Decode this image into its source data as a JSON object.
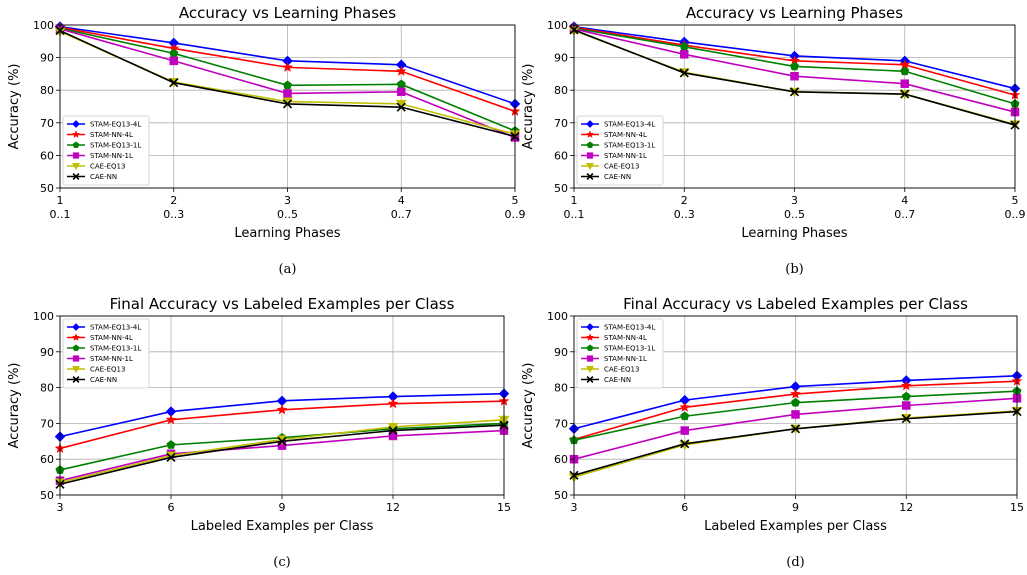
{
  "series_styles": {
    "STAM-EQ13-4L": {
      "color": "#0000ff",
      "marker": "diamond"
    },
    "STAM-NN-4L": {
      "color": "#ff0000",
      "marker": "star"
    },
    "STAM-EQ13-1L": {
      "color": "#008000",
      "marker": "pentagon"
    },
    "STAM-NN-1L": {
      "color": "#c000c0",
      "marker": "square"
    },
    "CAE-EQ13": {
      "color": "#bfbf00",
      "marker": "triangle-down"
    },
    "CAE-NN": {
      "color": "#000000",
      "marker": "x"
    }
  },
  "chart_data": [
    {
      "type": "line",
      "caption": "(a)",
      "title": "Accuracy vs Learning Phases",
      "xlabel": "Learning Phases",
      "ylabel": "Accuracy (%)",
      "x": [
        1,
        2,
        3,
        4,
        5
      ],
      "xtick_labels_top": [
        "1",
        "2",
        "3",
        "4",
        "5"
      ],
      "xtick_labels_bottom": [
        "0..1",
        "0..3",
        "0..5",
        "0..7",
        "0..9"
      ],
      "xlim": [
        1,
        5
      ],
      "ylim": [
        50,
        100
      ],
      "yticks": [
        50,
        60,
        70,
        80,
        90,
        100
      ],
      "grid": true,
      "legend_position": "lower-left",
      "series": [
        {
          "name": "STAM-EQ13-4L",
          "values": [
            99.5,
            94.5,
            89,
            87.8,
            75.8
          ]
        },
        {
          "name": "STAM-NN-4L",
          "values": [
            99.3,
            92.8,
            87,
            85.8,
            73.5
          ]
        },
        {
          "name": "STAM-EQ13-1L",
          "values": [
            99,
            91.3,
            81.5,
            81.8,
            67.5
          ]
        },
        {
          "name": "STAM-NN-1L",
          "values": [
            98.8,
            89,
            79,
            79.5,
            65.5
          ]
        },
        {
          "name": "CAE-EQ13",
          "values": [
            98,
            82.5,
            76.5,
            75.8,
            66.5
          ]
        },
        {
          "name": "CAE-NN",
          "values": [
            98.3,
            82.3,
            75.8,
            74.8,
            65.8
          ]
        }
      ]
    },
    {
      "type": "line",
      "caption": "(b)",
      "title": "Accuracy vs Learning Phases",
      "xlabel": "Learning Phases",
      "ylabel": "Accuracy (%)",
      "x": [
        1,
        2,
        3,
        4,
        5
      ],
      "xtick_labels_top": [
        "1",
        "2",
        "3",
        "4",
        "5"
      ],
      "xtick_labels_bottom": [
        "0..1",
        "0..3",
        "0..5",
        "0..7",
        "0..9"
      ],
      "xlim": [
        1,
        5
      ],
      "ylim": [
        50,
        100
      ],
      "yticks": [
        50,
        60,
        70,
        80,
        90,
        100
      ],
      "grid": true,
      "legend_position": "lower-left",
      "series": [
        {
          "name": "STAM-EQ13-4L",
          "values": [
            99.5,
            94.8,
            90.5,
            89,
            80.5
          ]
        },
        {
          "name": "STAM-NN-4L",
          "values": [
            99.3,
            93.8,
            89,
            87.8,
            78.5
          ]
        },
        {
          "name": "STAM-EQ13-1L",
          "values": [
            99,
            93.3,
            87.3,
            85.8,
            75.8
          ]
        },
        {
          "name": "STAM-NN-1L",
          "values": [
            98.8,
            91,
            84.3,
            82,
            73.3
          ]
        },
        {
          "name": "CAE-EQ13",
          "values": [
            98.3,
            85.5,
            79.5,
            78.8,
            69.5
          ]
        },
        {
          "name": "CAE-NN",
          "values": [
            98.5,
            85.3,
            79.5,
            78.8,
            69.3
          ]
        }
      ]
    },
    {
      "type": "line",
      "caption": "(c)",
      "title": "Final Accuracy vs Labeled Examples per Class",
      "xlabel": "Labeled Examples per Class",
      "ylabel": "Accuracy (%)",
      "x": [
        3,
        6,
        9,
        12,
        15
      ],
      "xtick_labels_top": [
        "3",
        "6",
        "9",
        "12",
        "15"
      ],
      "xlim": [
        3,
        15
      ],
      "ylim": [
        50,
        100
      ],
      "yticks": [
        50,
        60,
        70,
        80,
        90,
        100
      ],
      "grid": true,
      "legend_position": "upper-left",
      "series": [
        {
          "name": "STAM-EQ13-4L",
          "values": [
            66.3,
            73.3,
            76.3,
            77.5,
            78.3
          ]
        },
        {
          "name": "STAM-NN-4L",
          "values": [
            63,
            71,
            73.8,
            75.5,
            76.2
          ]
        },
        {
          "name": "STAM-EQ13-1L",
          "values": [
            57,
            64,
            66,
            68.5,
            70
          ]
        },
        {
          "name": "STAM-NN-1L",
          "values": [
            54,
            61.5,
            63.8,
            66.5,
            68
          ]
        },
        {
          "name": "CAE-EQ13",
          "values": [
            53.5,
            61,
            65.5,
            69,
            71
          ]
        },
        {
          "name": "CAE-NN",
          "values": [
            53,
            60.5,
            65,
            68,
            69.5
          ]
        }
      ]
    },
    {
      "type": "line",
      "caption": "(d)",
      "title": "Final Accuracy vs Labeled Examples per Class",
      "xlabel": "Labeled Examples per Class",
      "ylabel": "Accuracy (%)",
      "x": [
        3,
        6,
        9,
        12,
        15
      ],
      "xtick_labels_top": [
        "3",
        "6",
        "9",
        "12",
        "15"
      ],
      "xlim": [
        3,
        15
      ],
      "ylim": [
        50,
        100
      ],
      "yticks": [
        50,
        60,
        70,
        80,
        90,
        100
      ],
      "grid": true,
      "legend_position": "upper-left",
      "series": [
        {
          "name": "STAM-EQ13-4L",
          "values": [
            68.5,
            76.5,
            80.3,
            82,
            83.3
          ]
        },
        {
          "name": "STAM-NN-4L",
          "values": [
            65.5,
            74.5,
            78.2,
            80.5,
            81.8
          ]
        },
        {
          "name": "STAM-EQ13-1L",
          "values": [
            65.3,
            72,
            75.8,
            77.5,
            79
          ]
        },
        {
          "name": "STAM-NN-1L",
          "values": [
            60,
            68,
            72.5,
            75,
            77
          ]
        },
        {
          "name": "CAE-EQ13",
          "values": [
            55,
            64,
            68.5,
            71.5,
            73.5
          ]
        },
        {
          "name": "CAE-NN",
          "values": [
            55.5,
            64.3,
            68.5,
            71.3,
            73.3
          ]
        }
      ]
    }
  ]
}
